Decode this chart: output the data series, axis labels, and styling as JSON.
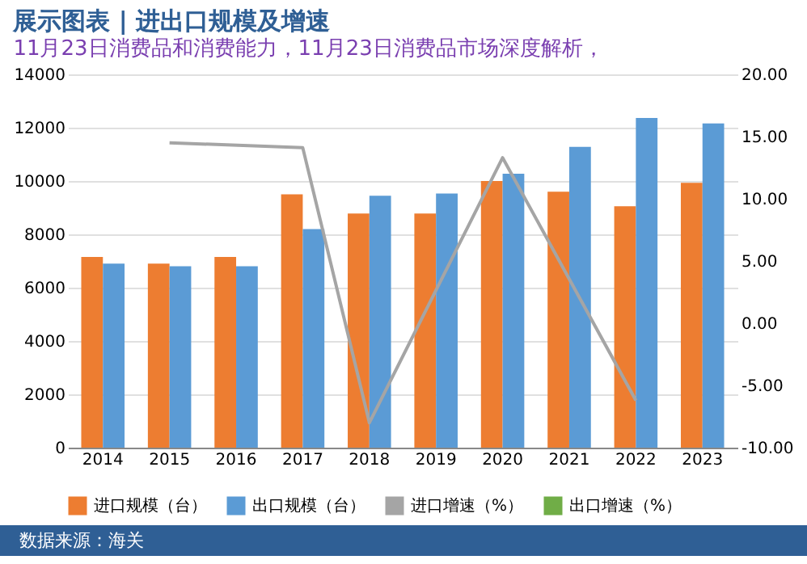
{
  "chart_data": {
    "type": "bar",
    "title": "展示图表 | 进出口规模及增速",
    "subtitle": "11月23日消费品和消费能力，11月23日消费品市场深度解析，",
    "categories": [
      "2014",
      "2015",
      "2016",
      "2017",
      "2018",
      "2019",
      "2020",
      "2021",
      "2022",
      "2023"
    ],
    "series": [
      {
        "name": "进口规模（台）",
        "color": "#ed7d31",
        "values": [
          7150,
          6900,
          7150,
          9500,
          8780,
          8780,
          10000,
          9600,
          9050,
          9930
        ]
      },
      {
        "name": "出口规模（台）",
        "color": "#5b9bd5",
        "values": [
          6900,
          6800,
          6800,
          8200,
          9450,
          9530,
          10270,
          11280,
          12360,
          12160
        ]
      },
      {
        "name": "进口增速（%）",
        "type": "line",
        "axis": "y2",
        "color": "#a5a5a5",
        "values": [
          null,
          14.5,
          null,
          14.1,
          -8.0,
          null,
          13.3,
          null,
          -6.2,
          null
        ]
      },
      {
        "name": "出口增速（%）",
        "type": "line",
        "axis": "y2",
        "color": "#70ad47",
        "values": [
          null,
          null,
          null,
          null,
          null,
          null,
          null,
          null,
          null,
          null
        ]
      }
    ],
    "ylim": [
      0,
      14000
    ],
    "yticks": [
      0,
      2000,
      4000,
      6000,
      8000,
      10000,
      12000,
      14000
    ],
    "y2lim": [
      -10,
      20
    ],
    "y2ticks": [
      {
        "value": -10,
        "label": "-10.00"
      },
      {
        "value": -5,
        "label": "-5.00"
      },
      {
        "value": 0,
        "label": "0.00"
      },
      {
        "value": 5,
        "label": "5.00"
      },
      {
        "value": 10,
        "label": "10.00"
      },
      {
        "value": 15,
        "label": "15.00"
      },
      {
        "value": 20,
        "label": "20.00"
      }
    ],
    "grid": "y",
    "legend": "bottom",
    "line_style": "solid",
    "annotations": [
      "数据来源：海关"
    ]
  }
}
